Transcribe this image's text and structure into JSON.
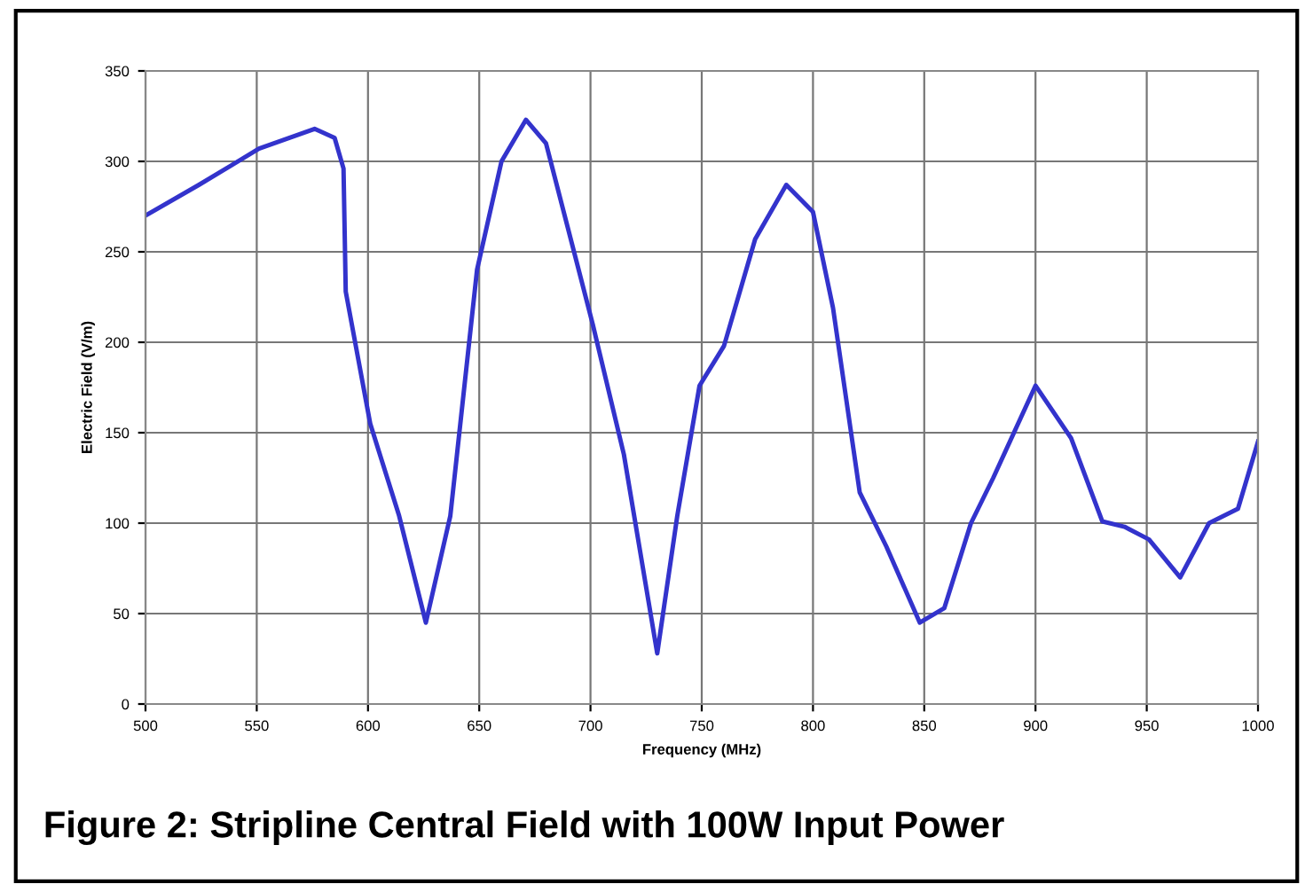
{
  "chart_data": {
    "type": "line",
    "xlabel": "Frequency (MHz)",
    "ylabel": "Electric Field (V/m)",
    "annotations": [
      "Figure 2: Stripline Central Field with 100W Input Power"
    ],
    "x": [
      500,
      524,
      551,
      576,
      585,
      589,
      590,
      601,
      614,
      626,
      637,
      649,
      660,
      671,
      680,
      701,
      715,
      730,
      739,
      749,
      760,
      774,
      788,
      800,
      809,
      821,
      833,
      848,
      859,
      871,
      881,
      900,
      916,
      930,
      940,
      951,
      965,
      978,
      991,
      1000
    ],
    "series": [
      {
        "color": "#3333cc",
        "values": [
          270,
          287,
          307,
          318,
          313,
          296,
          228,
          155,
          104,
          45,
          104,
          240,
          300,
          323,
          310,
          210,
          138,
          28,
          104,
          176,
          198,
          257,
          287,
          272,
          219,
          117,
          87,
          45,
          53,
          100,
          125,
          176,
          147,
          101,
          98,
          91,
          70,
          100,
          108,
          145
        ]
      }
    ],
    "xlim": [
      500,
      1000
    ],
    "ylim": [
      0,
      350
    ],
    "xticks": [
      500,
      550,
      600,
      650,
      700,
      750,
      800,
      850,
      900,
      950,
      1000
    ],
    "yticks": [
      0,
      50,
      100,
      150,
      200,
      250,
      300,
      350
    ],
    "grid": true,
    "legend": false,
    "marker": "none",
    "line_style": "solid"
  }
}
